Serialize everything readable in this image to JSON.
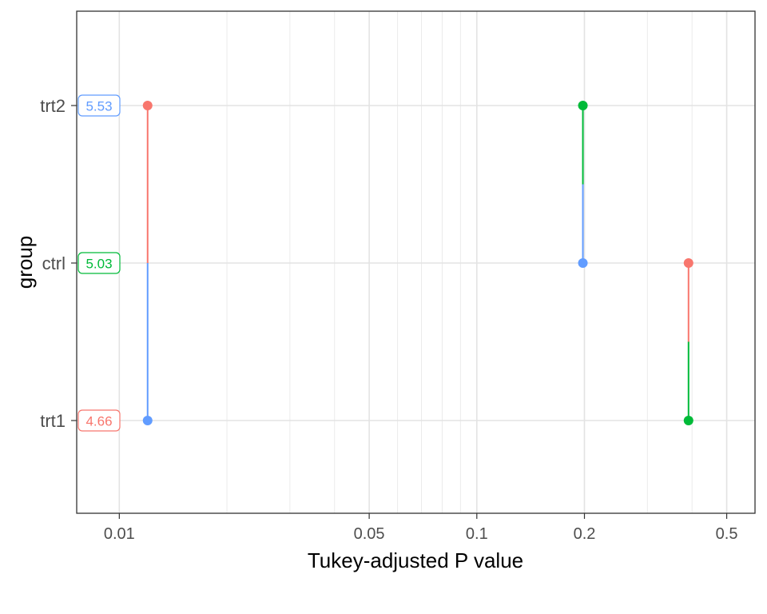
{
  "chart_data": {
    "type": "pairwise-p-value-plot",
    "xlabel": "Tukey-adjusted P value",
    "ylabel": "group",
    "x_scale": "log10",
    "xlim": [
      0.0076,
      0.6
    ],
    "x_ticks_major": [
      0.01,
      0.05,
      0.1,
      0.2,
      0.5
    ],
    "x_tick_labels": [
      "0.01",
      "0.05",
      "0.1",
      "0.2",
      "0.5"
    ],
    "x_ticks_minor": [
      0.02,
      0.03,
      0.04,
      0.06,
      0.07,
      0.08,
      0.09,
      0.3,
      0.4
    ],
    "groups": [
      {
        "name": "trt1",
        "estimate": "4.66",
        "color": "#F8766D"
      },
      {
        "name": "ctrl",
        "estimate": "5.03",
        "color": "#00BA38"
      },
      {
        "name": "trt2",
        "estimate": "5.53",
        "color": "#619CFF"
      }
    ],
    "comparisons": [
      {
        "from": "trt1",
        "to": "trt2",
        "p": 0.012
      },
      {
        "from": "ctrl",
        "to": "trt2",
        "p": 0.198
      },
      {
        "from": "trt1",
        "to": "ctrl",
        "p": 0.391
      }
    ],
    "grid": true,
    "legend": "none"
  }
}
